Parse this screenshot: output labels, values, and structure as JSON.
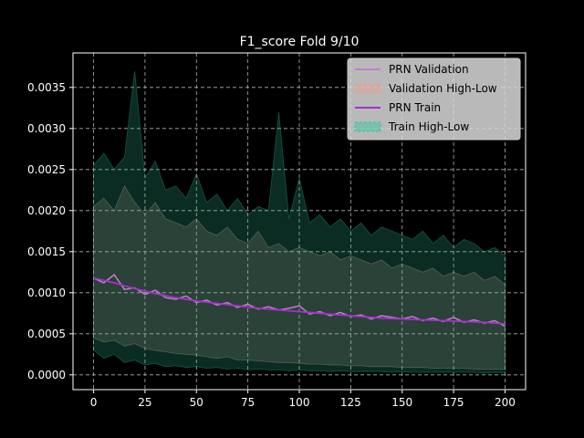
{
  "chart_data": {
    "type": "line",
    "title": "F1_score Fold 9/10",
    "xlabel": "",
    "ylabel": "",
    "xlim": [
      -10,
      210
    ],
    "ylim": [
      -0.00018,
      0.00392
    ],
    "xticks": [
      0,
      25,
      50,
      75,
      100,
      125,
      150,
      175,
      200
    ],
    "yticks": [
      0.0,
      0.0005,
      0.001,
      0.0015,
      0.002,
      0.0025,
      0.003,
      0.0035
    ],
    "ytick_labels": [
      "0.0000",
      "0.0005",
      "0.0010",
      "0.0015",
      "0.0020",
      "0.0025",
      "0.0030",
      "0.0035"
    ],
    "grid": true,
    "grid_style": "dashed",
    "legend_position": "top-right",
    "background": "#000000",
    "series": [
      {
        "name": "PRN Validation",
        "kind": "line",
        "color": "#c77bd6",
        "x": [
          0,
          5,
          10,
          15,
          20,
          25,
          30,
          35,
          40,
          45,
          50,
          55,
          60,
          65,
          70,
          75,
          80,
          85,
          90,
          95,
          100,
          105,
          110,
          115,
          120,
          125,
          130,
          135,
          140,
          145,
          150,
          155,
          160,
          165,
          170,
          175,
          180,
          185,
          190,
          195,
          200
        ],
        "y": [
          0.00118,
          0.00112,
          0.00122,
          0.00104,
          0.00106,
          0.00098,
          0.00103,
          0.00094,
          0.00092,
          0.00096,
          0.00088,
          0.00091,
          0.00085,
          0.00088,
          0.00082,
          0.00086,
          0.0008,
          0.00083,
          0.00079,
          0.00081,
          0.00084,
          0.00074,
          0.00077,
          0.00072,
          0.00076,
          0.00071,
          0.00073,
          0.00068,
          0.00072,
          0.0007,
          0.00068,
          0.00071,
          0.00066,
          0.00069,
          0.00065,
          0.0007,
          0.00064,
          0.00067,
          0.00063,
          0.00066,
          0.00059
        ]
      },
      {
        "name": "Validation High-Low",
        "kind": "band",
        "color": "#e8a092",
        "x": [
          0,
          5,
          10,
          15,
          20,
          25,
          30,
          35,
          40,
          45,
          50,
          55,
          60,
          65,
          70,
          75,
          80,
          85,
          90,
          95,
          100,
          105,
          110,
          115,
          120,
          125,
          130,
          135,
          140,
          145,
          150,
          155,
          160,
          165,
          170,
          175,
          180,
          185,
          190,
          195,
          200
        ],
        "high": [
          0.00205,
          0.00215,
          0.002,
          0.0023,
          0.0021,
          0.00195,
          0.0021,
          0.0019,
          0.00185,
          0.0018,
          0.0019,
          0.00175,
          0.0017,
          0.0018,
          0.00165,
          0.0016,
          0.00175,
          0.00155,
          0.0016,
          0.0015,
          0.00155,
          0.0015,
          0.00145,
          0.0015,
          0.0014,
          0.00145,
          0.0014,
          0.00135,
          0.0014,
          0.0013,
          0.00135,
          0.0013,
          0.00125,
          0.0013,
          0.0012,
          0.00125,
          0.0012,
          0.00125,
          0.00115,
          0.0012,
          0.0011
        ],
        "low": [
          0.00045,
          0.0004,
          0.00042,
          0.00035,
          0.00038,
          0.00032,
          0.0003,
          0.00028,
          0.00026,
          0.00025,
          0.00024,
          0.00022,
          0.0002,
          0.00022,
          0.00018,
          0.00018,
          0.00017,
          0.00016,
          0.00015,
          0.00015,
          0.00014,
          0.00013,
          0.00013,
          0.00012,
          0.00012,
          0.00011,
          0.00011,
          0.0001,
          0.0001,
          0.0001,
          9e-05,
          9e-05,
          9e-05,
          8e-05,
          8e-05,
          8e-05,
          8e-05,
          7e-05,
          7e-05,
          7e-05,
          7e-05
        ]
      },
      {
        "name": "PRN Train",
        "kind": "line",
        "color": "#a033c8",
        "x": [
          0,
          10,
          20,
          30,
          40,
          50,
          60,
          70,
          80,
          90,
          100,
          110,
          120,
          130,
          140,
          150,
          160,
          170,
          180,
          190,
          200
        ],
        "y": [
          0.00118,
          0.00112,
          0.00105,
          0.00099,
          0.00094,
          0.0009,
          0.00087,
          0.00084,
          0.00081,
          0.00079,
          0.00077,
          0.00075,
          0.00073,
          0.00071,
          0.00069,
          0.00068,
          0.00067,
          0.00066,
          0.00065,
          0.00064,
          0.00062
        ]
      },
      {
        "name": "Train High-Low",
        "kind": "band",
        "color": "#2ec9a0",
        "x": [
          0,
          5,
          10,
          15,
          20,
          25,
          30,
          35,
          40,
          45,
          50,
          55,
          60,
          65,
          70,
          75,
          80,
          85,
          90,
          95,
          100,
          105,
          110,
          115,
          120,
          125,
          130,
          135,
          140,
          145,
          150,
          155,
          160,
          165,
          170,
          175,
          180,
          185,
          190,
          195,
          200
        ],
        "high": [
          0.00255,
          0.0027,
          0.0025,
          0.00265,
          0.0037,
          0.0024,
          0.0026,
          0.00225,
          0.0023,
          0.00215,
          0.00245,
          0.0021,
          0.0022,
          0.002,
          0.00215,
          0.00195,
          0.00205,
          0.002,
          0.0032,
          0.0019,
          0.0024,
          0.00185,
          0.00195,
          0.0018,
          0.0019,
          0.00175,
          0.00185,
          0.0017,
          0.0018,
          0.00175,
          0.0017,
          0.00165,
          0.00175,
          0.0016,
          0.0017,
          0.00155,
          0.00165,
          0.0016,
          0.0015,
          0.00155,
          0.00145
        ],
        "low": [
          0.0003,
          0.0002,
          0.00025,
          0.00015,
          0.00018,
          0.00012,
          0.00014,
          0.0001,
          0.00011,
          9e-05,
          0.0001,
          8e-05,
          9e-05,
          7e-05,
          8e-05,
          6e-05,
          7e-05,
          6e-05,
          6e-05,
          5e-05,
          6e-05,
          5e-05,
          5e-05,
          4e-05,
          5e-05,
          4e-05,
          4e-05,
          4e-05,
          4e-05,
          3e-05,
          4e-05,
          3e-05,
          3e-05,
          3e-05,
          3e-05,
          3e-05,
          3e-05,
          3e-05,
          2e-05,
          3e-05,
          2e-05
        ]
      }
    ]
  }
}
